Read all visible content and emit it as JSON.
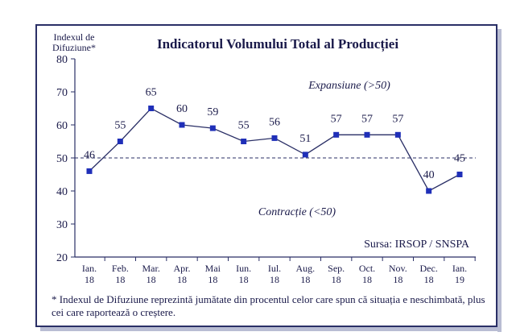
{
  "chart_data": {
    "type": "line",
    "title": "Indicatorul Volumului Total al Producției",
    "ylabel": "Indexul de Difuziune*",
    "ylabel_lines": [
      "Indexul de",
      "Difuziune*"
    ],
    "ylim": [
      20,
      80
    ],
    "yticks": [
      20,
      30,
      40,
      50,
      60,
      70,
      80
    ],
    "reference_line": 50,
    "categories": [
      "Ian. 18",
      "Feb. 18",
      "Mar. 18",
      "Apr. 18",
      "Mai 18",
      "Iun. 18",
      "Iul. 18",
      "Aug. 18",
      "Sep. 18",
      "Oct. 18",
      "Nov. 18",
      "Dec. 18",
      "Ian. 19"
    ],
    "category_lines": [
      [
        "Ian.",
        "18"
      ],
      [
        "Feb.",
        "18"
      ],
      [
        "Mar.",
        "18"
      ],
      [
        "Apr.",
        "18"
      ],
      [
        "Mai",
        "18"
      ],
      [
        "Iun.",
        "18"
      ],
      [
        "Iul.",
        "18"
      ],
      [
        "Aug.",
        "18"
      ],
      [
        "Sep.",
        "18"
      ],
      [
        "Oct.",
        "18"
      ],
      [
        "Nov.",
        "18"
      ],
      [
        "Dec.",
        "18"
      ],
      [
        "Ian.",
        "19"
      ]
    ],
    "values": [
      46,
      55,
      65,
      60,
      59,
      55,
      56,
      51,
      57,
      57,
      57,
      40,
      45
    ],
    "annotations": {
      "expansion": "Expansiune (>50)",
      "contraction": "Contracție (<50)",
      "source": "Sursa: IRSOP / SNSPA"
    },
    "grid": false,
    "line_color": "#2a2f66",
    "marker_color": "#1f2fb8",
    "text_color": "#1a1a4a"
  },
  "footnote": "* Indexul de Difuziune reprezintă jumătate din procentul celor care spun că situația e neschimbată, plus cei care raportează o creștere."
}
